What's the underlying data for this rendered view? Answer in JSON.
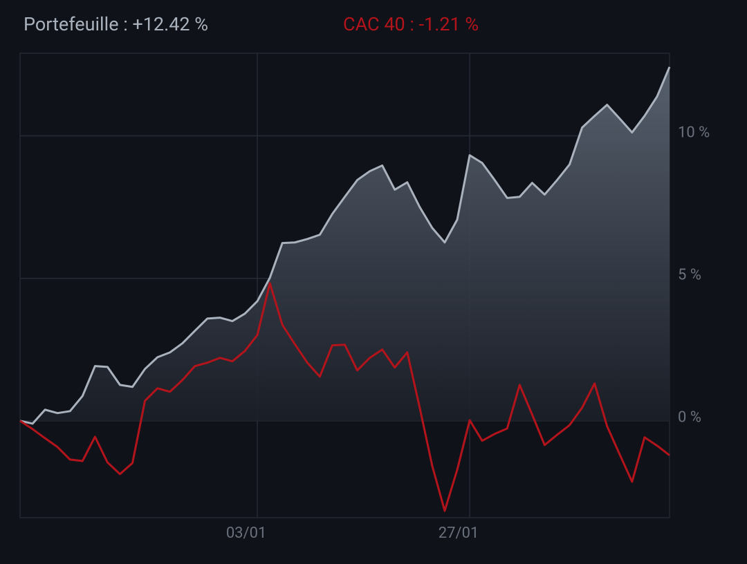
{
  "chart_data": {
    "type": "line",
    "categories": [
      null,
      null,
      null,
      null,
      null,
      null,
      null,
      null,
      null,
      null,
      null,
      null,
      null,
      null,
      null,
      null,
      null,
      null,
      null,
      "03/01",
      null,
      null,
      null,
      null,
      null,
      null,
      null,
      null,
      null,
      null,
      null,
      null,
      null,
      null,
      null,
      null,
      "27/01",
      null,
      null,
      null,
      null,
      null,
      null,
      null,
      null,
      null,
      null,
      null,
      null,
      null,
      null,
      null,
      null
    ],
    "series": [
      {
        "name": "Portefeuille : +12.42 %",
        "color": "#aab2bd",
        "area": true,
        "values": [
          0,
          -0.1,
          0.39,
          0.27,
          0.34,
          0.87,
          1.92,
          1.89,
          1.26,
          1.19,
          1.82,
          2.23,
          2.4,
          2.72,
          3.16,
          3.59,
          3.62,
          3.5,
          3.76,
          4.2,
          5.02,
          6.24,
          6.26,
          6.38,
          6.53,
          7.26,
          7.86,
          8.45,
          8.76,
          8.96,
          8.11,
          8.37,
          7.5,
          6.77,
          6.26,
          7.06,
          9.32,
          9.05,
          8.45,
          7.82,
          7.86,
          8.35,
          7.94,
          8.45,
          9.0,
          10.29,
          10.7,
          11.09,
          10.61,
          10.12,
          10.7,
          11.38,
          12.42
        ]
      },
      {
        "name": "CAC 40 : -1.21 %",
        "color": "#b3141b",
        "area": false,
        "values": [
          0,
          -0.29,
          -0.61,
          -0.92,
          -1.36,
          -1.41,
          -0.56,
          -1.46,
          -1.87,
          -1.48,
          0.7,
          1.14,
          1.02,
          1.43,
          1.92,
          2.04,
          2.21,
          2.09,
          2.45,
          3.01,
          4.83,
          3.37,
          2.69,
          2.04,
          1.55,
          2.65,
          2.67,
          1.77,
          2.21,
          2.5,
          1.87,
          2.4,
          0.46,
          -1.58,
          -3.16,
          -1.72,
          0.02,
          -0.7,
          -0.46,
          -0.27,
          1.26,
          0.22,
          -0.85,
          -0.49,
          -0.15,
          0.46,
          1.31,
          -0.19,
          -1.17,
          -2.14,
          -0.58,
          -0.87,
          -1.21
        ]
      }
    ],
    "ylim": [
      -3.4,
      12.9
    ],
    "yticks": [
      {
        "value": 0,
        "label": "0 %"
      },
      {
        "value": 5,
        "label": "5 %"
      },
      {
        "value": 10,
        "label": "10 %"
      }
    ],
    "grid": true
  }
}
